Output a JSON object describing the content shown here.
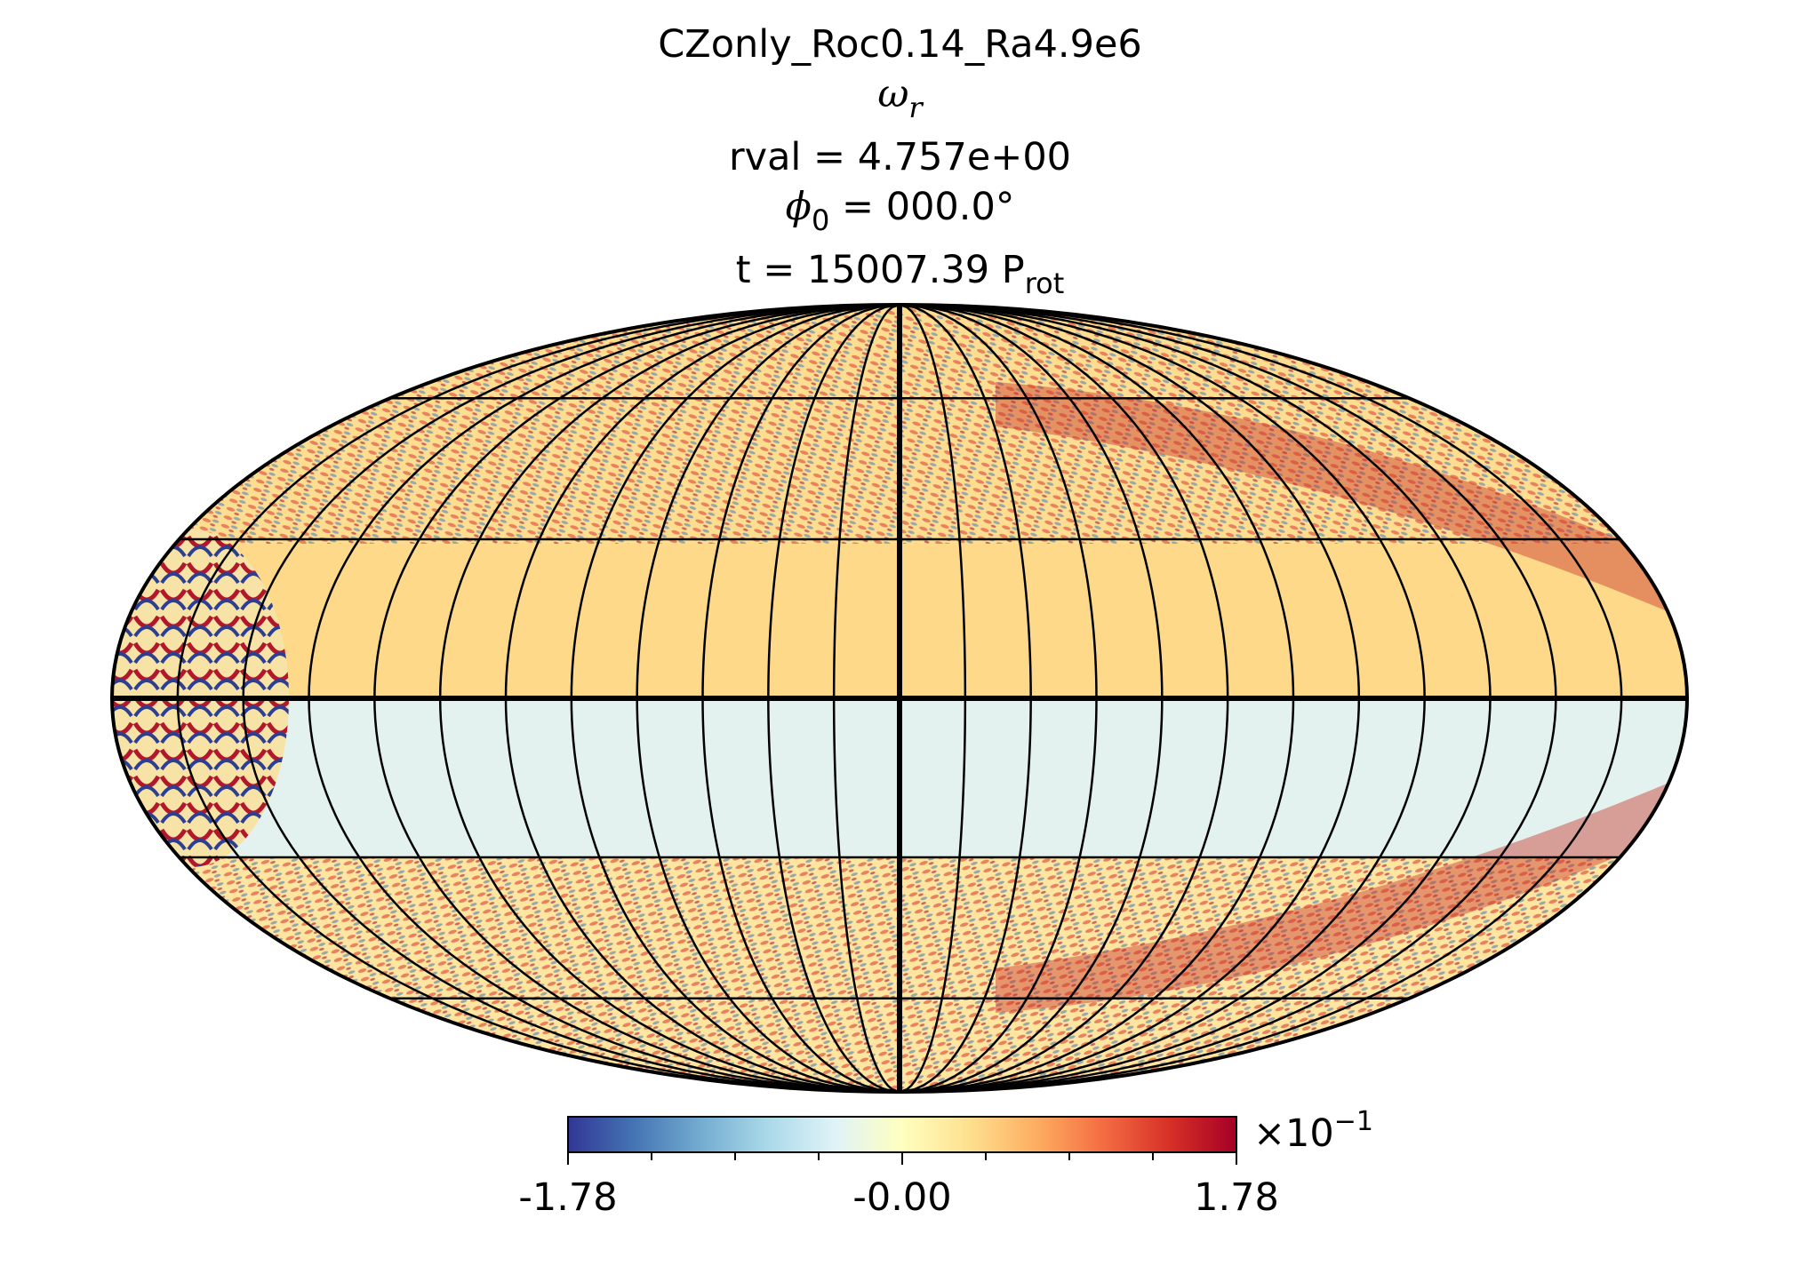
{
  "title": {
    "run_name": "CZonly_Roc0.14_Ra4.9e6",
    "quantity_symbol": "ω",
    "quantity_sub": "r",
    "rval_text": "rval = 4.757e+00",
    "phi_symbol": "ϕ",
    "phi_sub": "0",
    "phi_text": " = 000.0",
    "phi_degree": "°",
    "time_text": "t = 15007.39 P",
    "time_sub": "rot"
  },
  "chart_data": {
    "type": "heatmap",
    "projection": "mollweide",
    "title": "CZonly_Roc0.14_Ra4.9e6 ω_r rval = 4.757e+00 ϕ_0 = 000.0° t = 15007.39 P_rot",
    "parallels_deg": [
      -60,
      -30,
      0,
      30,
      60
    ],
    "meridians_deg": [
      -165,
      -150,
      -135,
      -120,
      -105,
      -90,
      -75,
      -60,
      -45,
      -30,
      -15,
      0,
      15,
      30,
      45,
      60,
      75,
      90,
      105,
      120,
      135,
      150,
      165
    ],
    "colormap": "RdYlBu_r",
    "colorbar": {
      "min": -1.78,
      "max": 1.78,
      "tick_labels": [
        "-1.78",
        "-0.00",
        "1.78"
      ],
      "multiplier_base": "×10",
      "multiplier_exp": "−1",
      "minor_ticks": 7
    },
    "features": [
      {
        "region": "equatorial band, northern side",
        "sign": "weakly positive"
      },
      {
        "region": "equatorial band, southern side",
        "sign": "weakly negative"
      },
      {
        "region": "high-latitude bands",
        "sign": "strong alternating small-scale structures"
      },
      {
        "region": "western edge near equator",
        "sign": "strong alternating large eddies"
      }
    ]
  }
}
